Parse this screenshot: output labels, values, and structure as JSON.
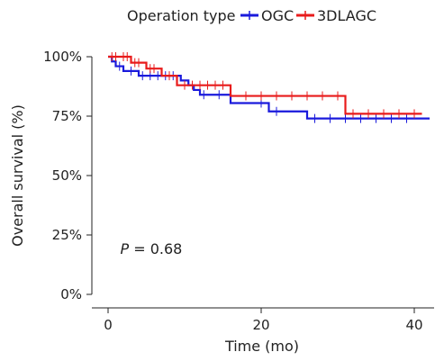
{
  "chart_data": {
    "type": "line",
    "legend": {
      "title": "Operation type",
      "placement": "top"
    },
    "xlabel": "Time (mo)",
    "ylabel": "Overall survival (%)",
    "xlim": [
      0,
      42
    ],
    "ylim": [
      0,
      100
    ],
    "xticks": [
      {
        "value": 0,
        "label": "0"
      },
      {
        "value": 20,
        "label": "20"
      },
      {
        "value": 40,
        "label": "40"
      }
    ],
    "yticks": [
      {
        "value": 0,
        "label": "0%"
      },
      {
        "value": 25,
        "label": "25%"
      },
      {
        "value": 50,
        "label": "50%"
      },
      {
        "value": 75,
        "label": "75%"
      },
      {
        "value": 100,
        "label": "100%"
      }
    ],
    "annotation": {
      "prefix": "P",
      "text": " = 0.68",
      "x": 1,
      "y": 19
    },
    "series": [
      {
        "name": "OGC",
        "color": "#1a1adc",
        "steps": [
          [
            0,
            100
          ],
          [
            0.5,
            98
          ],
          [
            1,
            96
          ],
          [
            2,
            94
          ],
          [
            4,
            92
          ],
          [
            9.5,
            90
          ],
          [
            10.5,
            88
          ],
          [
            11.2,
            86
          ],
          [
            12,
            84
          ],
          [
            16,
            80.5
          ],
          [
            21,
            77
          ],
          [
            26,
            74
          ],
          [
            42,
            74
          ]
        ],
        "censors": [
          1.5,
          3,
          4.5,
          5.5,
          6.5,
          7.5,
          8.5,
          12.5,
          14.5,
          20,
          22,
          27,
          29,
          31,
          33,
          35,
          37,
          39
        ]
      },
      {
        "name": "3DLAGC",
        "color": "#e81b1b",
        "steps": [
          [
            0,
            100
          ],
          [
            3,
            97.5
          ],
          [
            5,
            95
          ],
          [
            7,
            92
          ],
          [
            9,
            88
          ],
          [
            16,
            83.5
          ],
          [
            31,
            76
          ],
          [
            41,
            76
          ]
        ],
        "censors": [
          0.5,
          1,
          2,
          2.5,
          3.5,
          4,
          5.5,
          6,
          8,
          10,
          11,
          12,
          13,
          14,
          15,
          18,
          20,
          22,
          24,
          26,
          28,
          30,
          32,
          34,
          36,
          38,
          40
        ]
      }
    ]
  }
}
